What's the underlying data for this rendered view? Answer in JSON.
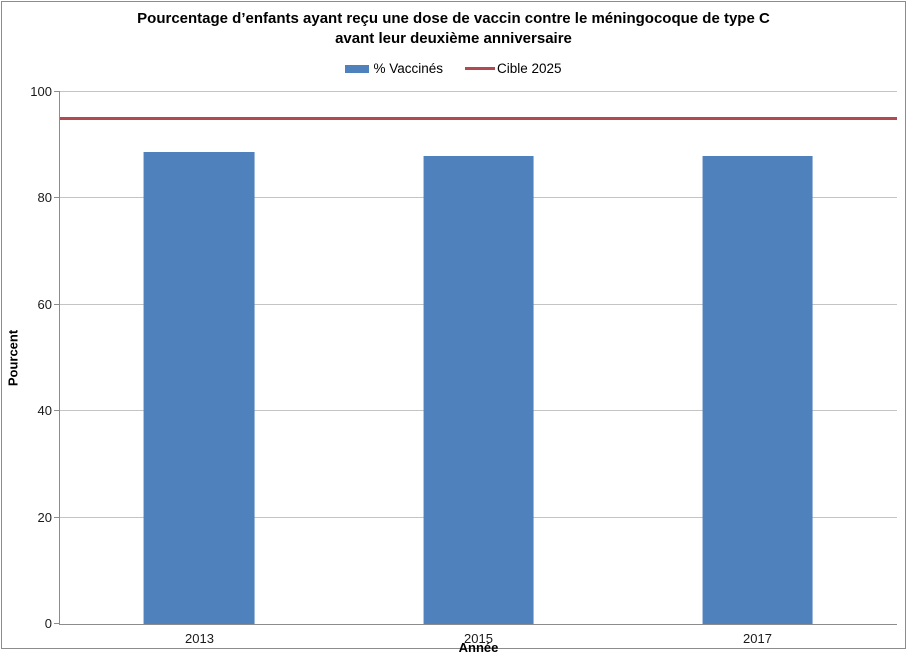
{
  "title": {
    "line1": "Pourcentage d’enfants ayant reçu une dose de vaccin contre le méningocoque de type C",
    "line2": "avant leur deuxième anniversaire"
  },
  "legend": {
    "items": [
      {
        "label": "% Vaccinés",
        "marker": "bar-swatch",
        "color": "#4F81BD"
      },
      {
        "label": "Cible 2025",
        "marker": "line-swatch",
        "color": "#B04A4E"
      }
    ],
    "position": "top"
  },
  "chart_data": {
    "type": "bar",
    "title": "Pourcentage d’enfants ayant reçu une dose de vaccin contre le méningocoque de type C avant leur deuxième anniversaire",
    "categories": [
      "2013",
      "2015",
      "2017"
    ],
    "series": [
      {
        "name": "% Vaccinés",
        "type": "bar",
        "color": "#4F81BD",
        "values": [
          88.7,
          88.0,
          88.0
        ]
      },
      {
        "name": "Cible 2025",
        "type": "line",
        "color": "#B04A4E",
        "values": [
          95,
          95,
          95
        ]
      }
    ],
    "target_value": 95,
    "xlabel": "Année",
    "ylabel": "Pourcent",
    "ylim": [
      0,
      100
    ],
    "yticks": [
      0,
      20,
      40,
      60,
      80,
      100
    ],
    "grid": true,
    "legend_position": "top"
  },
  "colors": {
    "bar": "#4F81BD",
    "target_line": "#B04A4E",
    "gridline": "#C4C4C4",
    "axis": "#8C8C8C",
    "frame_border": "#8C8C8C",
    "background": "#FFFFFF"
  }
}
